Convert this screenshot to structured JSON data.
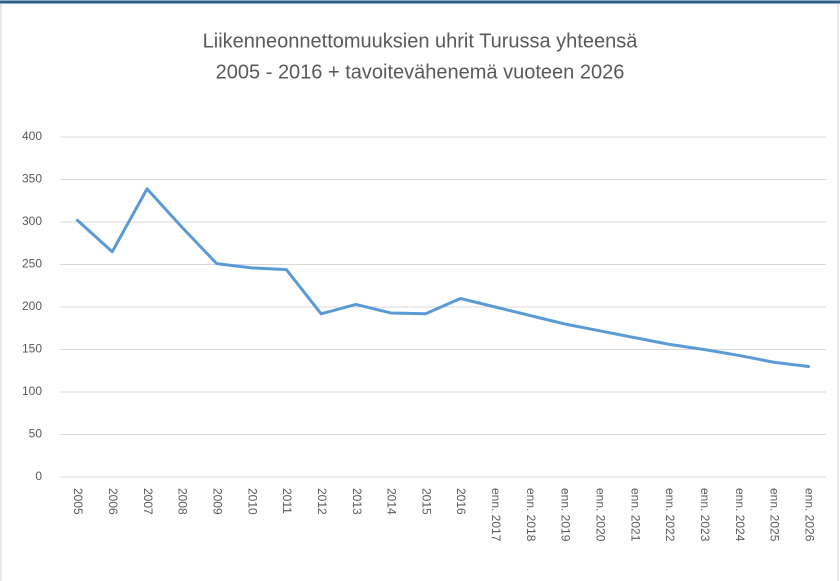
{
  "chart_data": {
    "type": "line",
    "title": [
      "Liikenneonnettomuuksien uhrit Turussa yhteensä",
      "2005 - 2016 + tavoitevähenemä vuoteen 2026"
    ],
    "categories": [
      "2005",
      "2006",
      "2007",
      "2008",
      "2009",
      "2010",
      "2011",
      "2012",
      "2013",
      "2014",
      "2015",
      "2016",
      "enn. 2017",
      "enn. 2018",
      "enn. 2019",
      "enn. 2020",
      "enn. 2021",
      "enn. 2022",
      "enn. 2023",
      "enn. 2024",
      "enn. 2025",
      "enn. 2026"
    ],
    "series": [
      {
        "color": "#5b9bd5",
        "values": [
          302,
          265,
          339,
          294,
          251,
          246,
          244,
          192,
          203,
          193,
          192,
          210,
          200,
          190,
          180,
          172,
          164,
          156,
          150,
          143,
          135,
          130
        ]
      }
    ],
    "ylim": [
      0,
      400
    ],
    "yticks": [
      0,
      50,
      100,
      150,
      200,
      250,
      300,
      350,
      400
    ],
    "grid": true
  }
}
